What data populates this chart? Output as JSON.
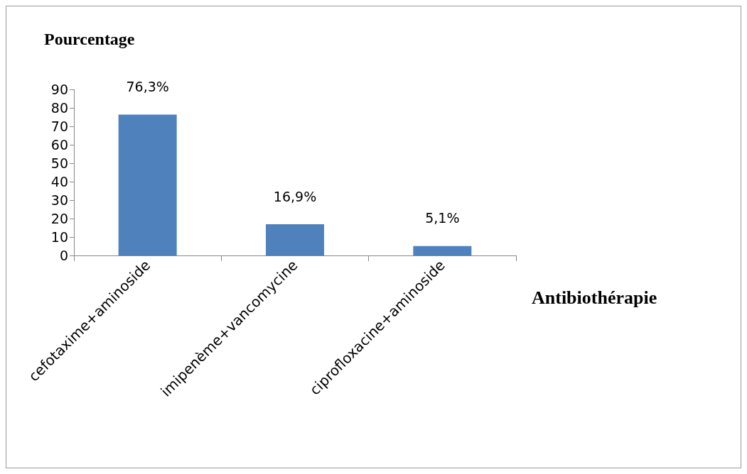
{
  "chart_data": {
    "type": "bar",
    "ylabel": "Pourcentage",
    "xlabel": "Antibiothérapie",
    "categories": [
      "cefotaxime+aminoside",
      "imipenème+vancomycine",
      "ciprofloxacine+aminoside"
    ],
    "values": [
      76.3,
      16.9,
      5.1
    ],
    "color": "#4f81bd",
    "value_labels": [
      "76,3%",
      "16,9%",
      "5,1%"
    ],
    "ylim": [
      0,
      90
    ],
    "yticks": [
      0,
      10,
      20,
      30,
      40,
      50,
      60,
      70,
      80,
      90
    ],
    "grid": false
  }
}
